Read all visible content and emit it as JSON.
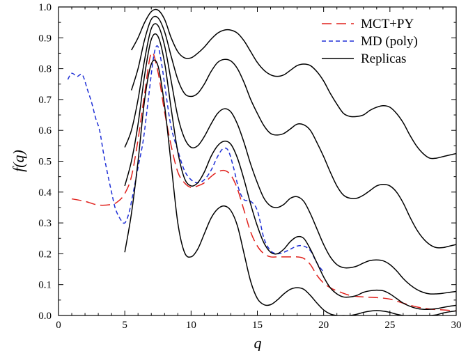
{
  "chart_data": {
    "type": "line",
    "title": "",
    "xlabel": "q",
    "ylabel": "f(q)",
    "xlim": [
      0,
      30
    ],
    "ylim": [
      0,
      1.0
    ],
    "xticks": [
      0,
      5,
      10,
      15,
      20,
      25,
      30
    ],
    "yticks": [
      0.0,
      0.1,
      0.2,
      0.3,
      0.4,
      0.5,
      0.6,
      0.7,
      0.8,
      0.9,
      1.0
    ],
    "xtick_labels": [
      "0",
      "5",
      "10",
      "15",
      "20",
      "25",
      "30"
    ],
    "ytick_labels": [
      "0.0",
      "0.1",
      "0.2",
      "0.3",
      "0.4",
      "0.5",
      "0.6",
      "0.7",
      "0.8",
      "0.9",
      "1.0"
    ],
    "grid": false,
    "legend_position": "top-right",
    "legend": [
      {
        "label": "MCT+PY",
        "color": "#e0201b",
        "style": "long-dash"
      },
      {
        "label": "MD (poly)",
        "color": "#1e2fd6",
        "style": "short-dash"
      },
      {
        "label": "Replicas",
        "color": "#000000",
        "style": "solid"
      }
    ],
    "series": [
      {
        "name": "MCT+PY",
        "color": "#e0201b",
        "dash": "14,7",
        "x": [
          1.0,
          2.0,
          3.0,
          4.0,
          4.5,
          5.0,
          5.5,
          6.0,
          6.5,
          7.0,
          7.5,
          8.0,
          8.5,
          9.0,
          9.5,
          10.0,
          10.5,
          11.0,
          11.5,
          12.0,
          12.5,
          13.0,
          13.5,
          14.0,
          14.5,
          15.0,
          15.5,
          16.0,
          16.5,
          17.0,
          17.5,
          18.0,
          18.5,
          19.0,
          19.5,
          20.0,
          20.5,
          21.0,
          22.0,
          23.0,
          24.0,
          25.0,
          26.0,
          27.0,
          28.0,
          29.0,
          30.0
        ],
        "y": [
          0.378,
          0.37,
          0.358,
          0.36,
          0.37,
          0.395,
          0.45,
          0.57,
          0.72,
          0.85,
          0.79,
          0.66,
          0.55,
          0.465,
          0.43,
          0.415,
          0.42,
          0.43,
          0.45,
          0.465,
          0.47,
          0.455,
          0.41,
          0.34,
          0.27,
          0.225,
          0.2,
          0.19,
          0.19,
          0.19,
          0.19,
          0.19,
          0.185,
          0.165,
          0.13,
          0.105,
          0.09,
          0.08,
          0.065,
          0.06,
          0.058,
          0.053,
          0.04,
          0.028,
          0.021,
          0.018,
          0.015
        ]
      },
      {
        "name": "MD (poly)",
        "color": "#1e2fd6",
        "dash": "6,4",
        "x": [
          0.7,
          1.0,
          1.4,
          1.8,
          2.2,
          2.5,
          2.8,
          3.1,
          3.4,
          3.7,
          4.0,
          4.3,
          4.7,
          5.0,
          5.3,
          5.6,
          6.0,
          6.4,
          6.8,
          7.2,
          7.5,
          7.8,
          8.1,
          8.5,
          9.0,
          9.5,
          10.0,
          10.5,
          11.0,
          11.5,
          12.0,
          12.4,
          12.8,
          13.2,
          13.6,
          14.0,
          14.5,
          15.0,
          15.5,
          16.0,
          16.5,
          17.0,
          17.5,
          18.0,
          18.5,
          19.0,
          19.5,
          20.0
        ],
        "y": [
          0.765,
          0.785,
          0.775,
          0.78,
          0.73,
          0.69,
          0.64,
          0.6,
          0.525,
          0.46,
          0.4,
          0.345,
          0.31,
          0.3,
          0.33,
          0.39,
          0.48,
          0.57,
          0.71,
          0.845,
          0.872,
          0.81,
          0.72,
          0.61,
          0.535,
          0.47,
          0.44,
          0.43,
          0.44,
          0.47,
          0.515,
          0.54,
          0.535,
          0.48,
          0.41,
          0.375,
          0.37,
          0.34,
          0.25,
          0.21,
          0.2,
          0.205,
          0.215,
          0.225,
          0.225,
          0.21,
          0.17,
          0.14
        ]
      },
      {
        "name": "Replicas 1",
        "color": "#000000",
        "dash": "",
        "x": [
          5.5,
          6.0,
          6.5,
          7.0,
          7.5,
          8.0,
          8.5,
          9.0,
          9.5,
          10.0,
          10.5,
          11.0,
          11.5,
          12.0,
          12.5,
          13.0,
          13.5,
          14.0,
          14.5,
          15.0,
          15.5,
          16.0,
          16.5,
          17.0,
          17.5,
          18.0,
          18.5,
          19.0,
          19.5,
          20.0,
          20.5,
          21.0,
          21.5,
          22.0,
          22.5,
          23.0,
          23.5,
          24.0,
          24.5,
          25.0,
          25.5,
          26.0,
          26.5,
          27.0,
          27.5,
          28.0,
          28.5,
          29.0,
          29.5,
          30.0
        ],
        "y": [
          0.86,
          0.9,
          0.95,
          0.985,
          0.99,
          0.96,
          0.9,
          0.855,
          0.835,
          0.835,
          0.85,
          0.87,
          0.895,
          0.915,
          0.925,
          0.925,
          0.915,
          0.89,
          0.855,
          0.82,
          0.795,
          0.78,
          0.775,
          0.78,
          0.795,
          0.81,
          0.815,
          0.81,
          0.79,
          0.76,
          0.72,
          0.685,
          0.655,
          0.645,
          0.645,
          0.65,
          0.665,
          0.675,
          0.68,
          0.675,
          0.655,
          0.625,
          0.585,
          0.55,
          0.525,
          0.51,
          0.51,
          0.515,
          0.52,
          0.525
        ]
      },
      {
        "name": "Replicas 2",
        "color": "#000000",
        "dash": "",
        "x": [
          5.5,
          6.0,
          6.5,
          7.0,
          7.5,
          8.0,
          8.5,
          9.0,
          9.5,
          10.0,
          10.5,
          11.0,
          11.5,
          12.0,
          12.5,
          13.0,
          13.5,
          14.0,
          14.5,
          15.0,
          15.5,
          16.0,
          16.5,
          17.0,
          17.5,
          18.0,
          18.5,
          19.0,
          19.5,
          20.0,
          20.5,
          21.0,
          21.5,
          22.0,
          22.5,
          23.0,
          23.5,
          24.0,
          24.5,
          25.0,
          25.5,
          26.0,
          26.5,
          27.0,
          27.5,
          28.0,
          28.5,
          29.0,
          29.5,
          30.0
        ],
        "y": [
          0.73,
          0.8,
          0.895,
          0.96,
          0.965,
          0.92,
          0.84,
          0.765,
          0.72,
          0.71,
          0.72,
          0.75,
          0.79,
          0.82,
          0.83,
          0.825,
          0.8,
          0.755,
          0.7,
          0.655,
          0.615,
          0.59,
          0.585,
          0.59,
          0.605,
          0.62,
          0.618,
          0.6,
          0.56,
          0.515,
          0.465,
          0.42,
          0.39,
          0.38,
          0.38,
          0.39,
          0.405,
          0.42,
          0.425,
          0.42,
          0.4,
          0.365,
          0.32,
          0.28,
          0.25,
          0.23,
          0.22,
          0.22,
          0.225,
          0.23
        ]
      },
      {
        "name": "Replicas 3",
        "color": "#000000",
        "dash": "",
        "x": [
          5.0,
          5.5,
          6.0,
          6.5,
          7.0,
          7.5,
          8.0,
          8.5,
          9.0,
          9.5,
          10.0,
          10.5,
          11.0,
          11.5,
          12.0,
          12.5,
          13.0,
          13.5,
          14.0,
          14.5,
          15.0,
          15.5,
          16.0,
          16.5,
          17.0,
          17.5,
          18.0,
          18.5,
          19.0,
          19.5,
          20.0,
          20.5,
          21.0,
          21.5,
          22.0,
          22.5,
          23.0,
          23.5,
          24.0,
          24.5,
          25.0,
          25.5,
          26.0,
          26.5,
          27.0,
          27.5,
          28.0,
          28.5,
          29.0,
          29.5,
          30.0
        ],
        "y": [
          0.545,
          0.6,
          0.7,
          0.83,
          0.93,
          0.94,
          0.875,
          0.76,
          0.645,
          0.575,
          0.545,
          0.55,
          0.58,
          0.62,
          0.655,
          0.67,
          0.66,
          0.62,
          0.56,
          0.49,
          0.43,
          0.38,
          0.355,
          0.35,
          0.36,
          0.38,
          0.385,
          0.37,
          0.33,
          0.28,
          0.23,
          0.19,
          0.165,
          0.155,
          0.155,
          0.16,
          0.17,
          0.178,
          0.18,
          0.177,
          0.165,
          0.145,
          0.12,
          0.1,
          0.085,
          0.075,
          0.07,
          0.07,
          0.072,
          0.075,
          0.078
        ]
      },
      {
        "name": "Replicas 4",
        "color": "#000000",
        "dash": "",
        "x": [
          5.0,
          5.5,
          6.0,
          6.5,
          7.0,
          7.5,
          8.0,
          8.5,
          9.0,
          9.5,
          10.0,
          10.5,
          11.0,
          11.5,
          12.0,
          12.5,
          13.0,
          13.5,
          14.0,
          14.5,
          15.0,
          15.5,
          16.0,
          16.5,
          17.0,
          17.5,
          18.0,
          18.5,
          19.0,
          19.5,
          20.0,
          20.5,
          21.0,
          21.5,
          22.0,
          22.5,
          23.0,
          23.5,
          24.0,
          24.5,
          25.0,
          25.5,
          26.0,
          26.5,
          27.0,
          27.5,
          28.0,
          28.5,
          29.0,
          29.5,
          30.0
        ],
        "y": [
          0.42,
          0.5,
          0.62,
          0.78,
          0.895,
          0.905,
          0.82,
          0.67,
          0.53,
          0.445,
          0.42,
          0.43,
          0.465,
          0.515,
          0.55,
          0.565,
          0.555,
          0.51,
          0.44,
          0.36,
          0.29,
          0.235,
          0.205,
          0.2,
          0.215,
          0.24,
          0.255,
          0.25,
          0.215,
          0.17,
          0.125,
          0.09,
          0.07,
          0.06,
          0.06,
          0.065,
          0.075,
          0.08,
          0.082,
          0.08,
          0.07,
          0.055,
          0.04,
          0.03,
          0.023,
          0.02,
          0.02,
          0.022,
          0.026,
          0.03,
          0.033
        ]
      },
      {
        "name": "Replicas 5",
        "color": "#000000",
        "dash": "",
        "x": [
          5.0,
          5.5,
          6.0,
          6.5,
          7.0,
          7.5,
          8.0,
          8.5,
          9.0,
          9.5,
          10.0,
          10.5,
          11.0,
          11.5,
          12.0,
          12.5,
          13.0,
          13.5,
          14.0,
          14.5,
          15.0,
          15.5,
          16.0,
          16.5,
          17.0,
          17.5,
          18.0,
          18.5,
          19.0,
          19.5,
          20.0,
          20.5,
          21.0,
          21.5,
          22.0,
          22.5,
          23.0,
          23.5,
          24.0,
          24.5,
          25.0,
          25.5,
          26.0,
          26.5,
          27.0,
          27.5,
          28.0,
          28.5,
          29.0,
          29.5,
          30.0
        ],
        "y": [
          0.205,
          0.33,
          0.5,
          0.7,
          0.815,
          0.81,
          0.68,
          0.49,
          0.3,
          0.205,
          0.19,
          0.215,
          0.265,
          0.315,
          0.345,
          0.355,
          0.34,
          0.29,
          0.2,
          0.11,
          0.055,
          0.035,
          0.035,
          0.05,
          0.07,
          0.085,
          0.09,
          0.085,
          0.065,
          0.04,
          0.018,
          0.005,
          0.0,
          0.0,
          0.0,
          0.004,
          0.01,
          0.014,
          0.016,
          0.014,
          0.01,
          0.004,
          0.0,
          0.0,
          0.0,
          0.0,
          0.0,
          0.002,
          0.008,
          0.012,
          0.015
        ]
      }
    ]
  }
}
